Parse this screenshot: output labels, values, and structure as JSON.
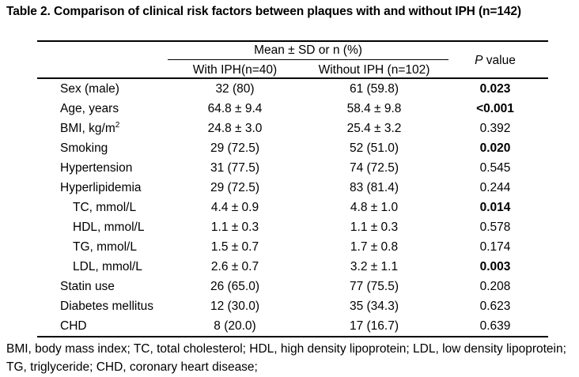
{
  "title": "Table 2. Comparison of clinical risk factors between plaques with and without IPH (n=142)",
  "table": {
    "header": {
      "spanner": "Mean ± SD or n (%)",
      "col_with": "With IPH(n=40)",
      "col_without": "Without IPH (n=102)",
      "p_italic": "P",
      "p_rest": " value"
    },
    "rows": [
      {
        "label": "Sex (male)",
        "indent": false,
        "with_iph": "32 (80)",
        "without_iph": "61 (59.8)",
        "p": "0.023",
        "p_bold": true
      },
      {
        "label": "Age, years",
        "indent": false,
        "with_iph": "64.8 ± 9.4",
        "without_iph": "58.4 ± 9.8",
        "p": "<0.001",
        "p_bold": true
      },
      {
        "label": "BMI, kg/m",
        "sup": "2",
        "indent": false,
        "with_iph": "24.8 ± 3.0",
        "without_iph": "25.4 ± 3.2",
        "p": "0.392",
        "p_bold": false
      },
      {
        "label": "Smoking",
        "indent": false,
        "with_iph": "29 (72.5)",
        "without_iph": "52 (51.0)",
        "p": "0.020",
        "p_bold": true
      },
      {
        "label": "Hypertension",
        "indent": false,
        "with_iph": "31 (77.5)",
        "without_iph": "74 (72.5)",
        "p": "0.545",
        "p_bold": false
      },
      {
        "label": "Hyperlipidemia",
        "indent": false,
        "with_iph": "29 (72.5)",
        "without_iph": "83 (81.4)",
        "p": "0.244",
        "p_bold": false
      },
      {
        "label": "TC, mmol/L",
        "indent": true,
        "with_iph": "4.4 ± 0.9",
        "without_iph": "4.8 ± 1.0",
        "p": "0.014",
        "p_bold": true
      },
      {
        "label": "HDL, mmol/L",
        "indent": true,
        "with_iph": "1.1 ± 0.3",
        "without_iph": "1.1 ± 0.3",
        "p": "0.578",
        "p_bold": false
      },
      {
        "label": "TG, mmol/L",
        "indent": true,
        "with_iph": "1.5 ± 0.7",
        "without_iph": "1.7 ± 0.8",
        "p": "0.174",
        "p_bold": false
      },
      {
        "label": "LDL, mmol/L",
        "indent": true,
        "with_iph": "2.6 ± 0.7",
        "without_iph": "3.2 ± 1.1",
        "p": "0.003",
        "p_bold": true
      },
      {
        "label": "Statin use",
        "indent": false,
        "with_iph": "26 (65.0)",
        "without_iph": "77 (75.5)",
        "p": "0.208",
        "p_bold": false
      },
      {
        "label": "Diabetes mellitus",
        "indent": false,
        "with_iph": "12 (30.0)",
        "without_iph": "35 (34.3)",
        "p": "0.623",
        "p_bold": false
      },
      {
        "label": "CHD",
        "indent": false,
        "with_iph": "8 (20.0)",
        "without_iph": "17 (16.7)",
        "p": "0.639",
        "p_bold": false
      }
    ]
  },
  "footnote": "BMI, body mass index; TC, total cholesterol; HDL, high density lipoprotein; LDL, low density lipoprotein; TG, triglyceride; CHD, coronary heart disease;"
}
